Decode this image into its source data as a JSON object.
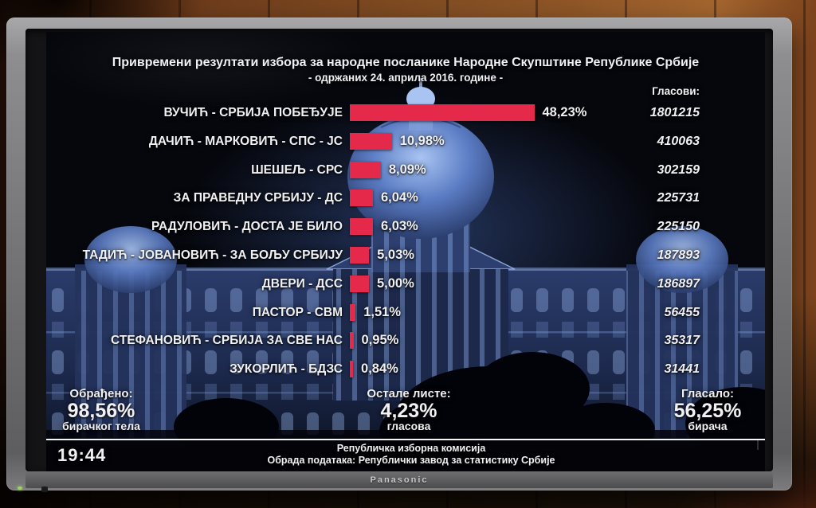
{
  "tv": {
    "brand": "Panasonic"
  },
  "screen": {
    "clock": "19:44",
    "footer_line1": "Републичка изборна комисија",
    "footer_line2": "Обрада података: Републички завод за статистику Србије",
    "stats": {
      "processed": {
        "label": "Обрађено:",
        "value": "98,56%",
        "sublabel": "бирачког тела"
      },
      "others": {
        "label": "Остале листе:",
        "value": "4,23%",
        "sublabel": "гласова"
      },
      "turnout": {
        "label": "Гласало:",
        "value": "56,25%",
        "sublabel": "бирача"
      }
    }
  },
  "chart_data": {
    "type": "bar",
    "orientation": "horizontal",
    "title": "Привремени резултати избора за народне посланике Народне Скупштине Републике Србије",
    "subtitle": "- одржаних 24. априла 2016. године -",
    "value_column_header": "Гласови:",
    "categories": [
      "ВУЧИЋ - СРБИЈА ПОБЕЂУЈЕ",
      "ДАЧИЋ - МАРКОВИЋ - СПС - ЈС",
      "ШЕШЕЉ - СРС",
      "ЗА ПРАВЕДНУ СРБИЈУ - ДС",
      "РАДУЛОВИЋ - ДОСТА ЈЕ БИЛО",
      "ТАДИЋ - ЈОВАНОВИЋ - ЗА БОЉУ СРБИЈУ",
      "ДВЕРИ - ДСС",
      "ПАСТОР - СВМ",
      "СТЕФАНОВИЋ - СРБИЈА ЗА СВЕ НАС",
      "ЗУКОРЛИЋ - БДЗС"
    ],
    "series": [
      {
        "name": "percent",
        "values": [
          48.23,
          10.98,
          8.09,
          6.04,
          6.03,
          5.03,
          5.0,
          1.51,
          0.95,
          0.84
        ]
      },
      {
        "name": "votes",
        "values": [
          1801215,
          410063,
          302159,
          225731,
          225150,
          187893,
          186897,
          56455,
          35317,
          31441
        ]
      }
    ],
    "percent_labels": [
      "48,23%",
      "10,98%",
      "8,09%",
      "6,04%",
      "6,03%",
      "5,03%",
      "5,00%",
      "1,51%",
      "0,95%",
      "0,84%"
    ],
    "vote_labels": [
      "1801215",
      "410063",
      "302159",
      "225731",
      "225150",
      "187893",
      "186897",
      "56455",
      "35317",
      "31441"
    ],
    "bar_color": "#e5294b",
    "xlim": [
      0,
      50
    ],
    "grid": false,
    "legend": false
  }
}
